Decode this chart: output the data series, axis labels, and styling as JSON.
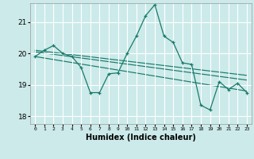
{
  "xlabel": "Humidex (Indice chaleur)",
  "bg_color": "#cceaea",
  "grid_color": "#ffffff",
  "line_color": "#1a7a6a",
  "xlim": [
    -0.5,
    23.5
  ],
  "ylim": [
    17.75,
    21.6
  ],
  "yticks": [
    18,
    19,
    20,
    21
  ],
  "xticks": [
    0,
    1,
    2,
    3,
    4,
    5,
    6,
    7,
    8,
    9,
    10,
    11,
    12,
    13,
    14,
    15,
    16,
    17,
    18,
    19,
    20,
    21,
    22,
    23
  ],
  "humidex_curve": [
    19.9,
    20.1,
    20.25,
    20.0,
    19.9,
    19.55,
    18.75,
    18.75,
    19.35,
    19.38,
    20.0,
    20.55,
    21.2,
    21.55,
    20.55,
    20.35,
    19.7,
    19.65,
    18.35,
    18.2,
    19.1,
    18.85,
    19.05,
    18.75
  ],
  "trend1_x": [
    0,
    23
  ],
  "trend1_y": [
    20.1,
    19.3
  ],
  "trend2_x": [
    0,
    23
  ],
  "trend2_y": [
    20.05,
    19.15
  ],
  "trend3_x": [
    0,
    23
  ],
  "trend3_y": [
    19.9,
    18.8
  ]
}
